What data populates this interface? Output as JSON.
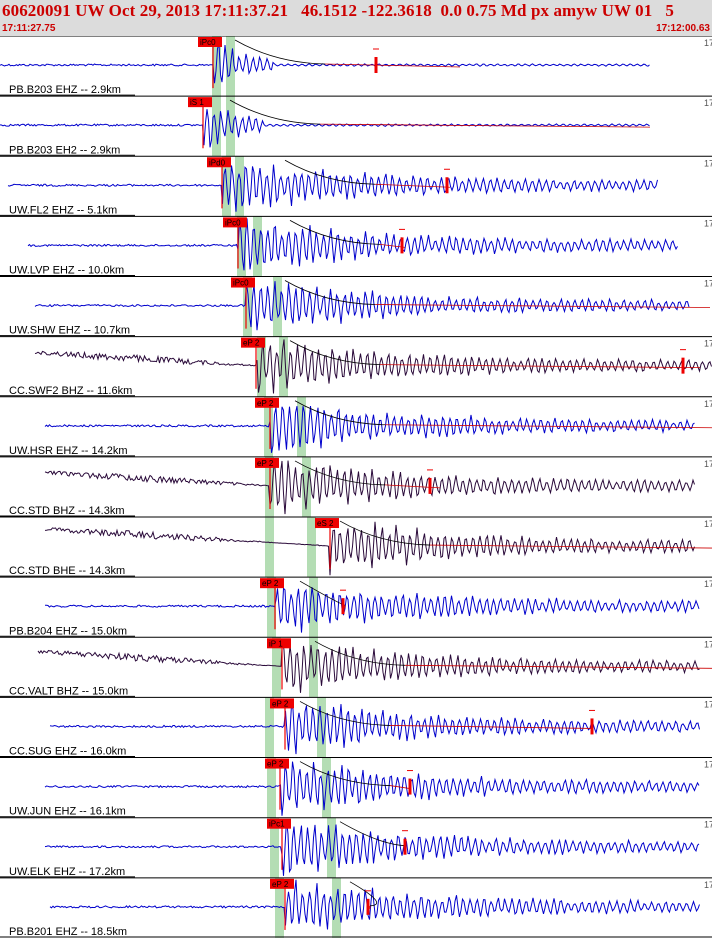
{
  "header": {
    "title": "60620091 UW Oct 29, 2013 17:11:37.21   46.1512 -122.3618  0.0 0.75 Md px amyw UW 01   5",
    "time_start": "17:11:27.75",
    "time_end": "17:12:00.63"
  },
  "colors": {
    "header_bg": "#dcdcdc",
    "header_text": "#cc0000",
    "trace_blue": "#0000cc",
    "trace_dark": "#2a0a3a",
    "pick_red": "#ee0000",
    "window_green": "#b4ddb4",
    "coda_red": "#cc0000",
    "coda_black": "#000000"
  },
  "panel_corner_mark": "17",
  "traces": [
    {
      "label": "PB.B203 EHZ -- 2.9km",
      "pick": "iPc0",
      "color": "blue"
    },
    {
      "label": "PB.B203 EH2 -- 2.9km",
      "pick": "iS 1",
      "color": "blue"
    },
    {
      "label": "UW.FL2 EHZ -- 5.1km",
      "pick": "iPd0",
      "color": "blue"
    },
    {
      "label": "UW.LVP EHZ -- 10.0km",
      "pick": "iPc0",
      "color": "blue"
    },
    {
      "label": "UW.SHW EHZ -- 10.7km",
      "pick": "iPc0",
      "color": "blue"
    },
    {
      "label": "CC.SWF2 BHZ -- 11.6km",
      "pick": "eP 2",
      "color": "dark"
    },
    {
      "label": "UW.HSR EHZ -- 14.2km",
      "pick": "eP 2",
      "color": "blue"
    },
    {
      "label": "CC.STD BHZ -- 14.3km",
      "pick": "eP 2",
      "color": "dark"
    },
    {
      "label": "CC.STD BHE -- 14.3km",
      "pick": "eS 2",
      "color": "dark"
    },
    {
      "label": "PB.B204 EHZ -- 15.0km",
      "pick": "eP 2",
      "color": "blue"
    },
    {
      "label": "CC.VALT BHZ -- 15.0km",
      "pick": "iP 1",
      "color": "dark"
    },
    {
      "label": "CC.SUG EHZ -- 16.0km",
      "pick": "eP 2",
      "color": "blue"
    },
    {
      "label": "UW.JUN EHZ -- 16.1km",
      "pick": "eP 2",
      "color": "blue"
    },
    {
      "label": "UW.ELK EHZ -- 17.2km",
      "pick": "iPc1",
      "color": "blue"
    },
    {
      "label": "PB.B201 EHZ -- 18.5km",
      "pick": "eP 2",
      "color": "blue"
    }
  ]
}
